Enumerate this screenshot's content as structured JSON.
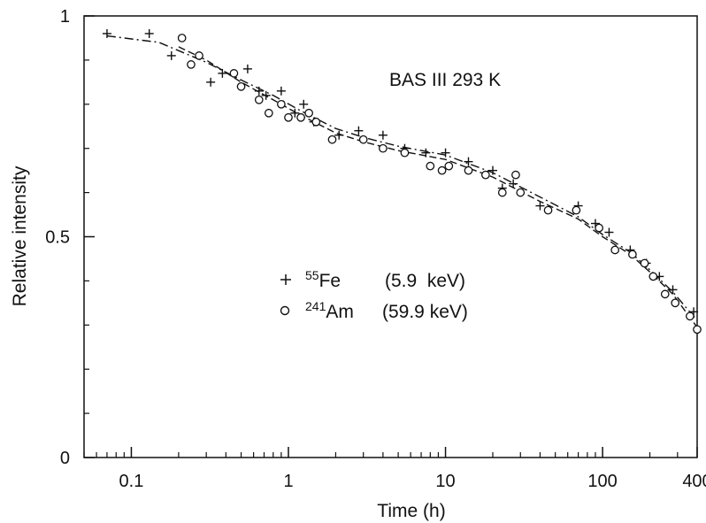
{
  "chart_data": {
    "type": "scatter",
    "title": "",
    "annotation": "BAS III 293 K",
    "xlabel": "Time (h)",
    "ylabel": "Relative intensity",
    "x_scale": "log",
    "xlim": [
      0.05,
      400
    ],
    "ylim": [
      0,
      1
    ],
    "x_ticks": [
      0.1,
      1,
      10,
      100,
      400
    ],
    "x_tick_labels": [
      "0.1",
      "1",
      "10",
      "100",
      "400"
    ],
    "y_ticks": [
      0,
      0.5,
      1
    ],
    "y_tick_labels": [
      "0",
      "0.5",
      "1"
    ],
    "grid": false,
    "legend": {
      "placement": "center-left",
      "entries": [
        {
          "marker": "plus",
          "isotope_mass": "55",
          "isotope_symbol": "Fe",
          "energy": "(5.9  keV)"
        },
        {
          "marker": "circle",
          "isotope_mass": "241",
          "isotope_symbol": "Am",
          "energy": "(59.9 keV)"
        }
      ]
    },
    "series": [
      {
        "name": "55Fe (5.9 keV)",
        "marker": "plus",
        "points": [
          [
            0.07,
            0.96
          ],
          [
            0.13,
            0.96
          ],
          [
            0.18,
            0.91
          ],
          [
            0.32,
            0.85
          ],
          [
            0.38,
            0.87
          ],
          [
            0.55,
            0.88
          ],
          [
            0.65,
            0.83
          ],
          [
            0.72,
            0.82
          ],
          [
            0.9,
            0.83
          ],
          [
            1.1,
            0.78
          ],
          [
            1.25,
            0.8
          ],
          [
            1.45,
            0.76
          ],
          [
            2.1,
            0.73
          ],
          [
            2.8,
            0.74
          ],
          [
            4.0,
            0.73
          ],
          [
            5.5,
            0.7
          ],
          [
            7.5,
            0.69
          ],
          [
            10.0,
            0.69
          ],
          [
            14.0,
            0.67
          ],
          [
            20.0,
            0.65
          ],
          [
            23.0,
            0.61
          ],
          [
            27.0,
            0.62
          ],
          [
            40.0,
            0.57
          ],
          [
            70.0,
            0.57
          ],
          [
            90.0,
            0.53
          ],
          [
            110.0,
            0.51
          ],
          [
            150.0,
            0.47
          ],
          [
            190.0,
            0.44
          ],
          [
            230.0,
            0.41
          ],
          [
            280.0,
            0.38
          ],
          [
            380.0,
            0.33
          ]
        ]
      },
      {
        "name": "241Am (59.9 keV)",
        "marker": "circle",
        "points": [
          [
            0.21,
            0.95
          ],
          [
            0.24,
            0.89
          ],
          [
            0.27,
            0.91
          ],
          [
            0.45,
            0.87
          ],
          [
            0.5,
            0.84
          ],
          [
            0.65,
            0.81
          ],
          [
            0.75,
            0.78
          ],
          [
            0.9,
            0.8
          ],
          [
            1.0,
            0.77
          ],
          [
            1.2,
            0.77
          ],
          [
            1.35,
            0.78
          ],
          [
            1.5,
            0.76
          ],
          [
            1.9,
            0.72
          ],
          [
            3.0,
            0.72
          ],
          [
            4.0,
            0.7
          ],
          [
            5.5,
            0.69
          ],
          [
            8.0,
            0.66
          ],
          [
            9.5,
            0.65
          ],
          [
            10.5,
            0.66
          ],
          [
            14.0,
            0.65
          ],
          [
            18.0,
            0.64
          ],
          [
            23.0,
            0.6
          ],
          [
            28.0,
            0.64
          ],
          [
            30.0,
            0.6
          ],
          [
            45.0,
            0.56
          ],
          [
            68.0,
            0.56
          ],
          [
            95.0,
            0.52
          ],
          [
            120.0,
            0.47
          ],
          [
            155.0,
            0.46
          ],
          [
            185.0,
            0.44
          ],
          [
            210.0,
            0.41
          ],
          [
            250.0,
            0.37
          ],
          [
            290.0,
            0.35
          ],
          [
            360.0,
            0.32
          ],
          [
            400.0,
            0.29
          ]
        ]
      },
      {
        "name": "55Fe fit",
        "style": "dash-dot",
        "points": [
          [
            0.07,
            0.955
          ],
          [
            0.15,
            0.94
          ],
          [
            0.3,
            0.895
          ],
          [
            0.5,
            0.855
          ],
          [
            0.8,
            0.82
          ],
          [
            1.2,
            0.785
          ],
          [
            2.0,
            0.745
          ],
          [
            3.0,
            0.725
          ],
          [
            5.0,
            0.705
          ],
          [
            10.0,
            0.685
          ],
          [
            20.0,
            0.645
          ],
          [
            40.0,
            0.59
          ],
          [
            70.0,
            0.545
          ],
          [
            100.0,
            0.505
          ],
          [
            150.0,
            0.465
          ],
          [
            200.0,
            0.425
          ],
          [
            280.0,
            0.375
          ],
          [
            400.0,
            0.31
          ]
        ]
      },
      {
        "name": "241Am fit",
        "style": "dashed",
        "points": [
          [
            0.2,
            0.93
          ],
          [
            0.3,
            0.9
          ],
          [
            0.5,
            0.85
          ],
          [
            0.8,
            0.81
          ],
          [
            1.2,
            0.775
          ],
          [
            2.0,
            0.735
          ],
          [
            3.0,
            0.715
          ],
          [
            5.0,
            0.695
          ],
          [
            10.0,
            0.675
          ],
          [
            20.0,
            0.635
          ],
          [
            40.0,
            0.58
          ],
          [
            70.0,
            0.54
          ],
          [
            100.0,
            0.5
          ],
          [
            150.0,
            0.46
          ],
          [
            200.0,
            0.42
          ],
          [
            280.0,
            0.37
          ],
          [
            400.0,
            0.295
          ]
        ]
      }
    ]
  }
}
